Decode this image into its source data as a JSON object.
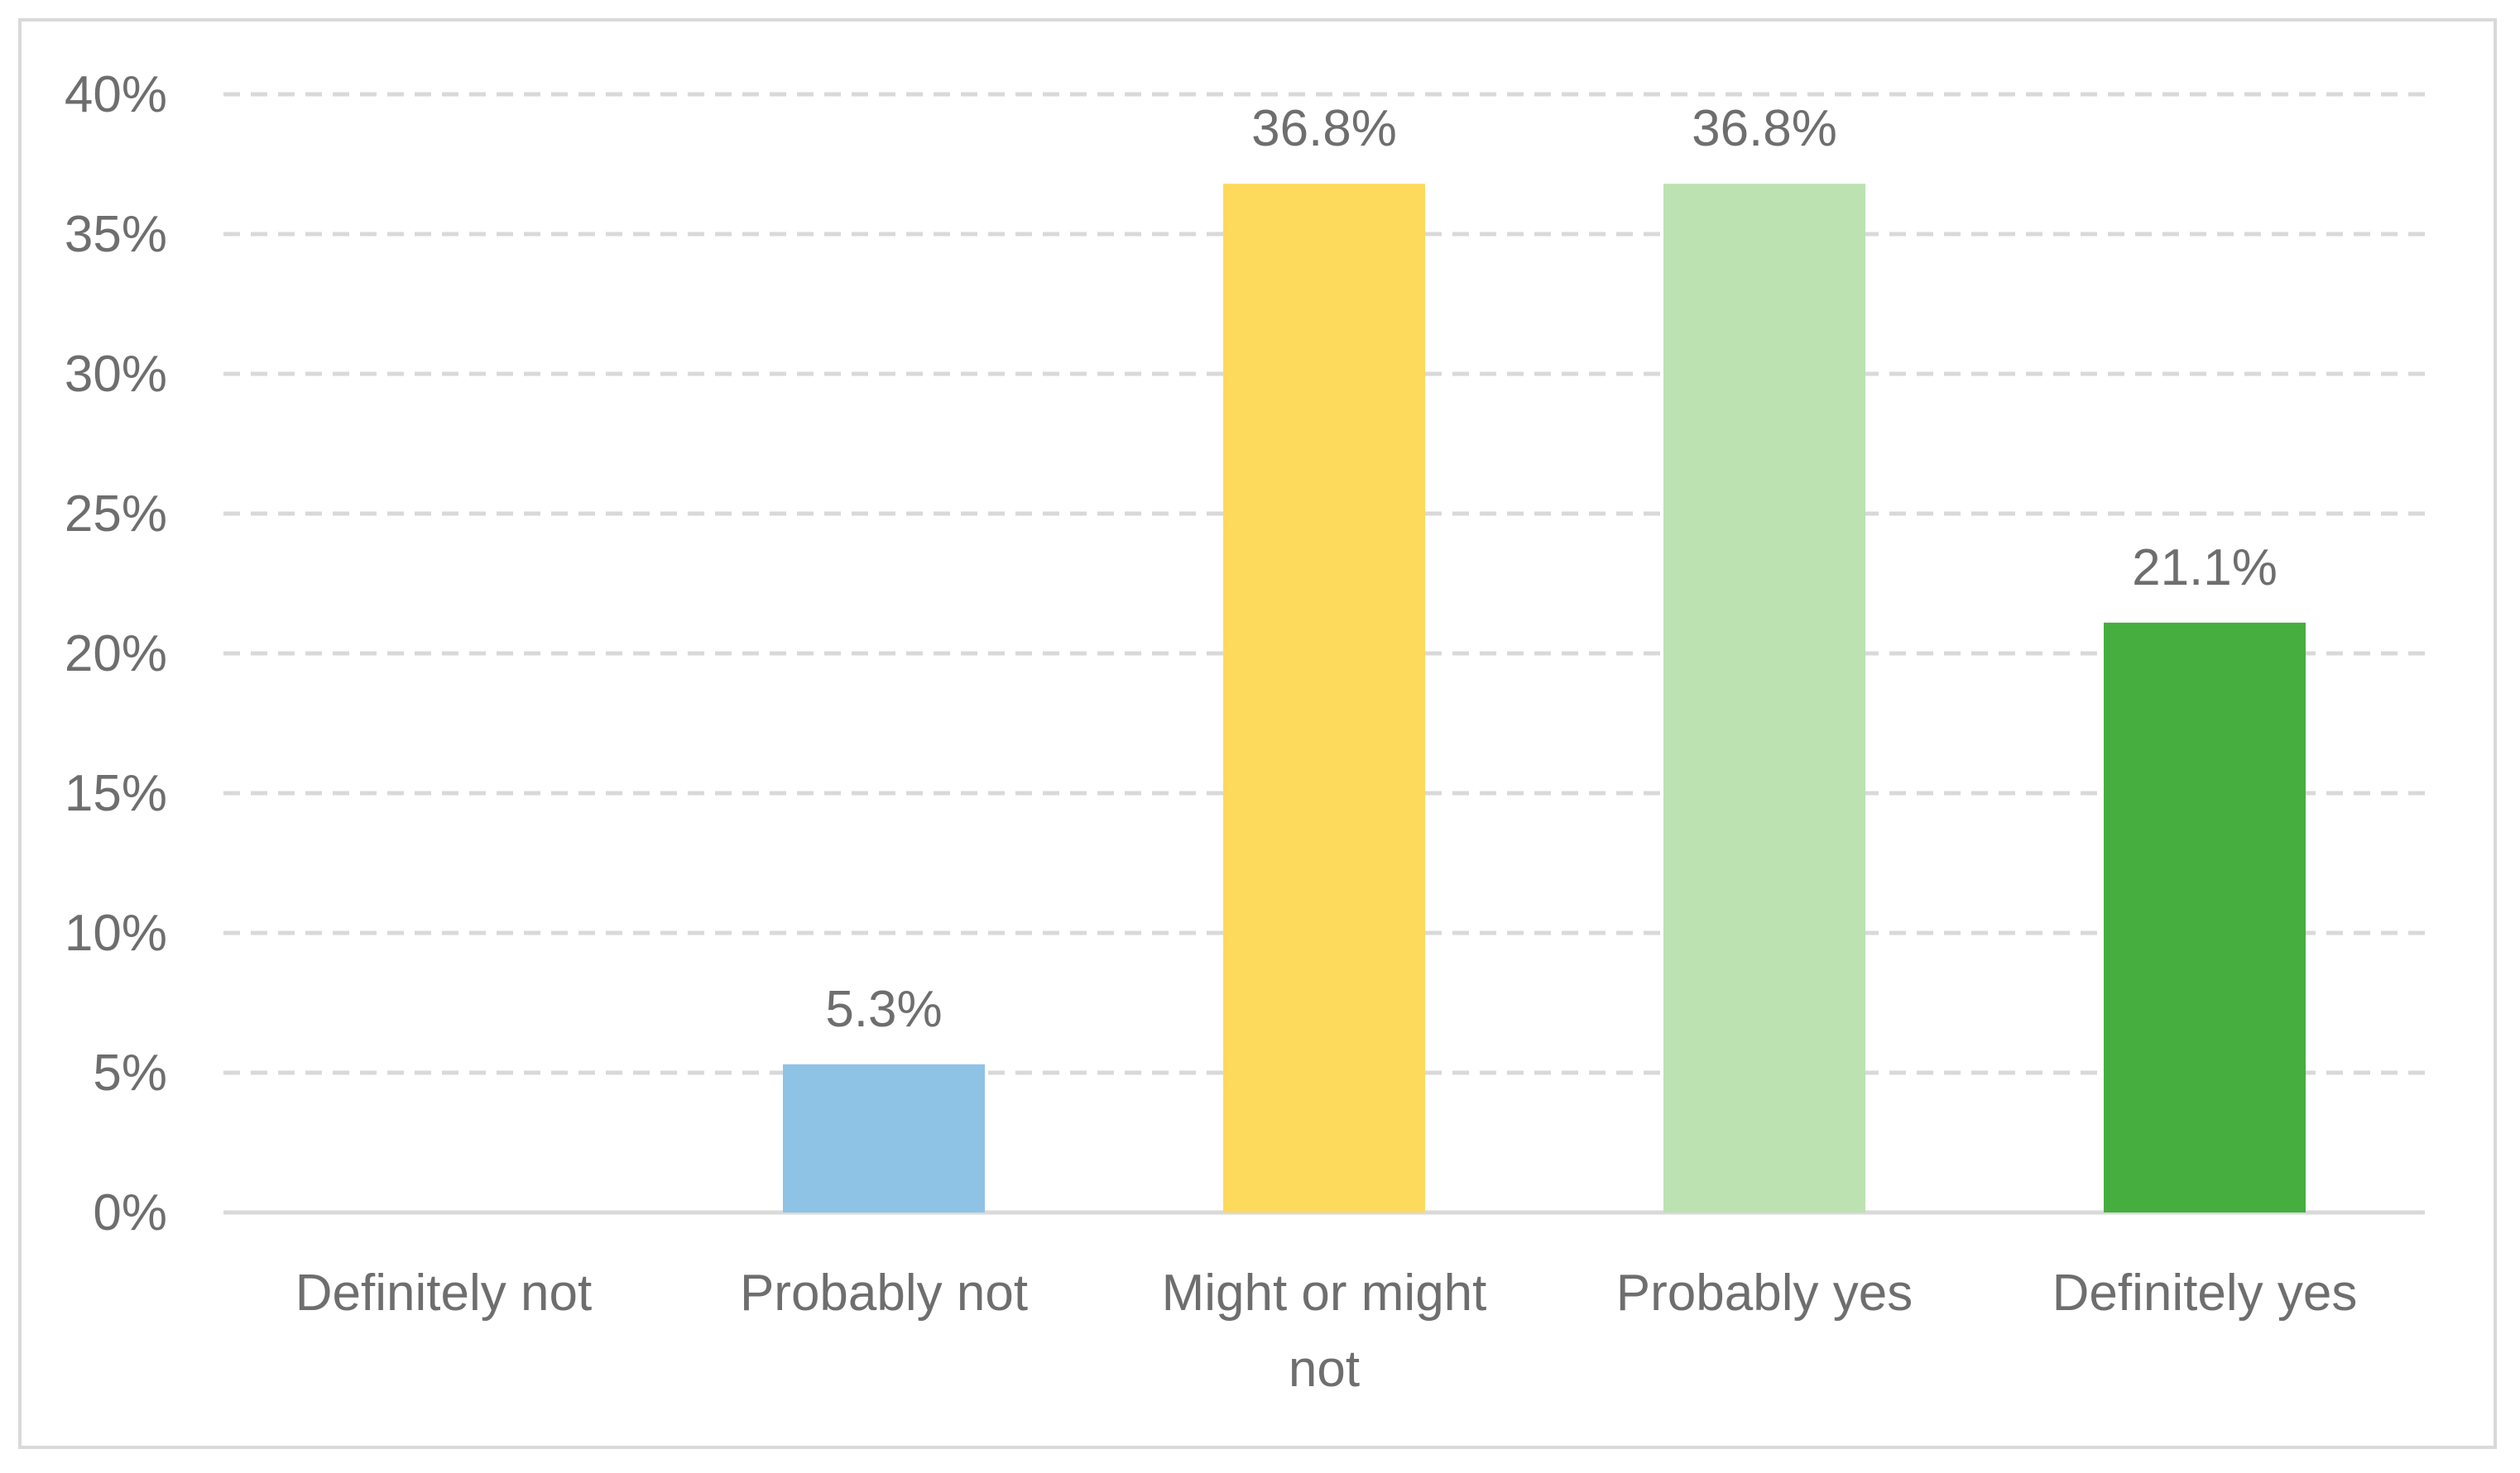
{
  "chart_data": {
    "type": "bar",
    "categories": [
      "Definitely not",
      "Probably not",
      "Might or might not",
      "Probably yes",
      "Definitely yes"
    ],
    "category_label_lines": [
      [
        "Definitely not"
      ],
      [
        "Probably not"
      ],
      [
        "Might or might",
        "not"
      ],
      [
        "Probably yes"
      ],
      [
        "Definitely yes"
      ]
    ],
    "values": [
      0,
      5.3,
      36.8,
      36.8,
      21.1
    ],
    "data_labels": [
      "",
      "5.3%",
      "36.8%",
      "36.8%",
      "21.1%"
    ],
    "colors": [
      "#8ec3e6",
      "#8ec3e6",
      "#fdd95c",
      "#bce2b2",
      "#46ae3f"
    ],
    "ylim": [
      0,
      40
    ],
    "yticks": [
      0,
      5,
      10,
      15,
      20,
      25,
      30,
      35,
      40
    ],
    "ytick_labels": [
      "0%",
      "5%",
      "10%",
      "15%",
      "20%",
      "25%",
      "30%",
      "35%",
      "40%"
    ],
    "grid": "dashed horizontal",
    "grid_color": "#d9d9d9",
    "axis_color": "#d9d9d9",
    "title": "",
    "xlabel": "",
    "ylabel": "",
    "legend": "none"
  }
}
